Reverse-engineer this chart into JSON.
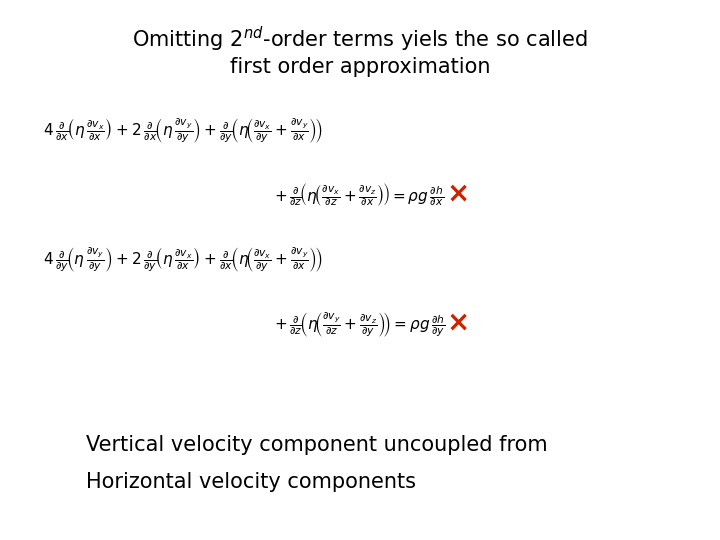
{
  "title_line1": "Omitting 2nd-order terms yiels the so called",
  "title_line2": "first order approximation",
  "footer_line1": "Vertical velocity component uncoupled from",
  "footer_line2": "Horizontal velocity components",
  "bg_color": "#ffffff",
  "text_color": "#000000",
  "cross_color": "#cc2200",
  "title_fontsize": 15,
  "eq_fontsize": 11,
  "footer_fontsize": 15
}
